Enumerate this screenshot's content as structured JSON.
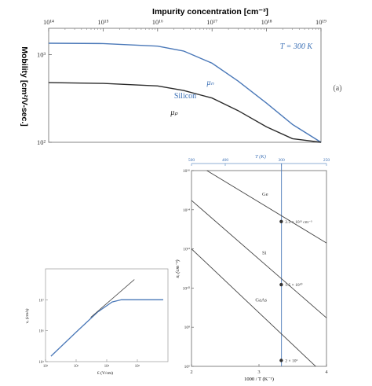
{
  "chart_data": [
    {
      "type": "line",
      "title": "Impurity concentration [cm⁻³]",
      "ylabel": "Mobility [cm²/V-sec.]",
      "xscale": "log",
      "yscale": "log",
      "xlim": [
        100000000000000.0,
        1e+19
      ],
      "ylim": [
        100,
        2000
      ],
      "x_tick_labels": [
        "10¹⁴",
        "10¹⁵",
        "10¹⁶",
        "10¹⁷",
        "10¹⁸",
        "10¹⁹"
      ],
      "y_tick_labels": [
        "10³",
        "10²"
      ],
      "annotations": [
        "T = 300 K",
        "Silicon",
        "(a)"
      ],
      "series": [
        {
          "name": "μₙ",
          "color": "#4a78b8",
          "x": [
            100000000000000.0,
            1000000000000000.0,
            1e+16,
            3e+16,
            1e+17,
            3e+17,
            1e+18,
            3e+18,
            1e+19
          ],
          "y": [
            1350,
            1340,
            1250,
            1100,
            800,
            500,
            280,
            160,
            100
          ]
        },
        {
          "name": "μₚ",
          "color": "#2a2a2a",
          "x": [
            100000000000000.0,
            1000000000000000.0,
            1e+16,
            3e+16,
            1e+17,
            3e+17,
            1e+18,
            3e+18,
            1e+19
          ],
          "y": [
            480,
            470,
            440,
            390,
            320,
            230,
            150,
            110,
            100
          ]
        }
      ],
      "grid": false
    },
    {
      "type": "line",
      "xlabel": "1000 / T (K⁻¹)",
      "ylabel": "nᵢ (cm⁻³)",
      "top_xlabel": "T (K)",
      "yscale": "log",
      "xlim": [
        2,
        4
      ],
      "ylim": [
        1000000.0,
        1e+16
      ],
      "x_tick_labels": [
        "2",
        "3",
        "4"
      ],
      "top_tick_labels": [
        "500",
        "400",
        "300",
        "250"
      ],
      "y_tick_labels": [
        "10¹⁶",
        "10¹⁴",
        "10¹²",
        "10¹⁰",
        "10⁸",
        "10⁶"
      ],
      "vertical_line_label": "300",
      "series": [
        {
          "name": "Ge",
          "x": [
            2.0,
            4.0
          ],
          "y": [
            3e+16,
            2000000000000.0
          ]
        },
        {
          "name": "Si",
          "x": [
            2.0,
            4.0
          ],
          "y": [
            300000000000000.0,
            300000000.0
          ]
        },
        {
          "name": "GaAs",
          "x": [
            2.0,
            4.0
          ],
          "y": [
            1000000000000.0,
            300000.0
          ]
        }
      ],
      "points": [
        {
          "label": "2.5 × 10¹³ cm⁻³",
          "x": 3.33,
          "y": 25000000000000.0
        },
        {
          "label": "1.5 × 10¹⁰",
          "x": 3.33,
          "y": 15000000000.0
        },
        {
          "label": "2 × 10⁶",
          "x": 3.33,
          "y": 2000000.0
        }
      ]
    },
    {
      "type": "line",
      "xlabel": "Ɛ (V/cm)",
      "ylabel": "vₑ (cm/s)",
      "xscale": "log",
      "yscale": "log",
      "xlim": [
        100.0,
        1000000.0
      ],
      "ylim": [
        100000.0,
        100000000.0
      ],
      "x_tick_labels": [
        "10²",
        "10³",
        "10⁴",
        "10⁵"
      ],
      "y_tick_labels": [
        "10⁷",
        "10⁶",
        "10⁵"
      ],
      "series": [
        {
          "name": "",
          "color": "#4a78b8",
          "x": [
            150,
            1000,
            5000,
            15000,
            30000,
            100000,
            700000
          ],
          "y": [
            150000,
            900000,
            4000000,
            8500000,
            10000000,
            10000000,
            10000000
          ]
        },
        {
          "name": "",
          "color": "#444444",
          "dashed": false,
          "x": [
            3000,
            80000
          ],
          "y": [
            2700000,
            45000000
          ]
        }
      ]
    }
  ]
}
